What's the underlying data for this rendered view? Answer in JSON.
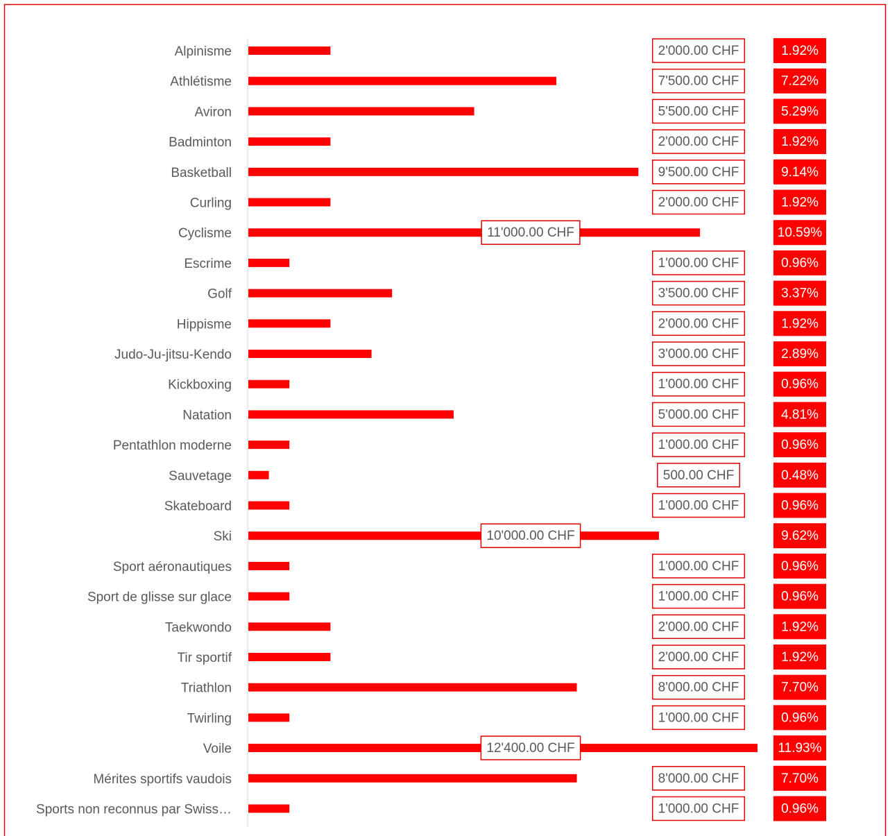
{
  "chart_data": {
    "type": "bar",
    "orientation": "horizontal",
    "color": "#ff0000",
    "categories": [
      "Alpinisme",
      "Athlétisme",
      "Aviron",
      "Badminton",
      "Basketball",
      "Curling",
      "Cyclisme",
      "Escrime",
      "Golf",
      "Hippisme",
      "Judo-Ju-jitsu-Kendo",
      "Kickboxing",
      "Natation",
      "Pentathlon moderne",
      "Sauvetage",
      "Skateboard",
      "Ski",
      "Sport aéronautiques",
      "Sport de glisse sur glace",
      "Taekwondo",
      "Tir sportif",
      "Triathlon",
      "Twirling",
      "Voile",
      "Mérites sportifs vaudois",
      "Sports non reconnus par Swiss…"
    ],
    "values": [
      2000,
      7500,
      5500,
      2000,
      9500,
      2000,
      11000,
      1000,
      3500,
      2000,
      3000,
      1000,
      5000,
      1000,
      500,
      1000,
      10000,
      1000,
      1000,
      2000,
      2000,
      8000,
      1000,
      12400,
      8000,
      1000
    ],
    "value_labels": [
      "2'000.00 CHF",
      "7'500.00 CHF",
      "5'500.00 CHF",
      "2'000.00 CHF",
      "9'500.00 CHF",
      "2'000.00 CHF",
      "11'000.00 CHF",
      "1'000.00 CHF",
      "3'500.00 CHF",
      "2'000.00 CHF",
      "3'000.00 CHF",
      "1'000.00 CHF",
      "5'000.00 CHF",
      "1'000.00 CHF",
      "500.00 CHF",
      "1'000.00 CHF",
      "10'000.00 CHF",
      "1'000.00 CHF",
      "1'000.00 CHF",
      "2'000.00 CHF",
      "2'000.00 CHF",
      "8'000.00 CHF",
      "1'000.00 CHF",
      "12'400.00 CHF",
      "8'000.00 CHF",
      "1'000.00 CHF"
    ],
    "percentages": [
      1.92,
      7.22,
      5.29,
      1.92,
      9.14,
      1.92,
      10.59,
      0.96,
      3.37,
      1.92,
      2.89,
      0.96,
      4.81,
      0.96,
      0.48,
      0.96,
      9.62,
      0.96,
      0.96,
      1.92,
      1.92,
      7.7,
      0.96,
      11.93,
      7.7,
      0.96
    ],
    "percentage_labels": [
      "1.92%",
      "7.22%",
      "5.29%",
      "1.92%",
      "9.14%",
      "1.92%",
      "10.59%",
      "0.96%",
      "3.37%",
      "1.92%",
      "2.89%",
      "0.96%",
      "4.81%",
      "0.96%",
      "0.48%",
      "0.96%",
      "9.62%",
      "0.96%",
      "0.96%",
      "1.92%",
      "1.92%",
      "7.70%",
      "0.96%",
      "11.93%",
      "7.70%",
      "0.96%"
    ],
    "xlim": [
      0,
      12400
    ]
  }
}
